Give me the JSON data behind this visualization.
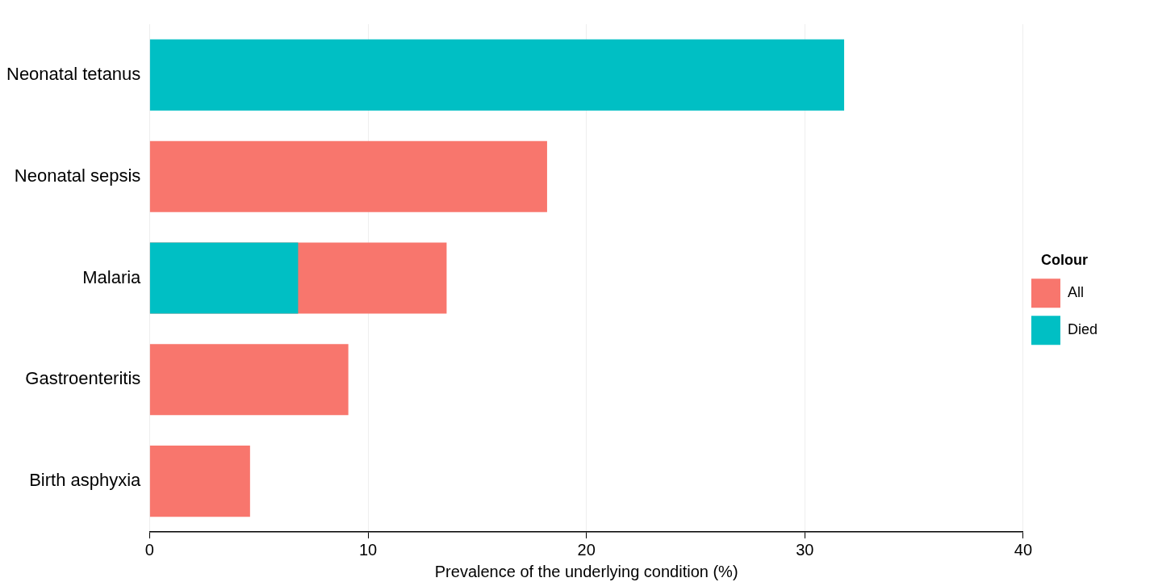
{
  "chart_data": {
    "type": "bar",
    "orientation": "horizontal",
    "xlabel": "Prevalence of the underlying condition (%)",
    "legend_title": "Colour",
    "legend": "right",
    "categories": [
      "Neonatal tetanus",
      "Neonatal sepsis",
      "Malaria",
      "Gastroenteritis",
      "Birth asphyxia"
    ],
    "series": [
      {
        "name": "All",
        "color": "#f8766d",
        "values": [
          null,
          18.2,
          13.6,
          9.1,
          4.6
        ]
      },
      {
        "name": "Died",
        "color": "#00bfc4",
        "values": [
          31.8,
          null,
          6.8,
          null,
          null
        ]
      }
    ],
    "xlim": [
      0,
      40
    ],
    "xticks": [
      0,
      10,
      20,
      30,
      40
    ],
    "grid": "x"
  }
}
